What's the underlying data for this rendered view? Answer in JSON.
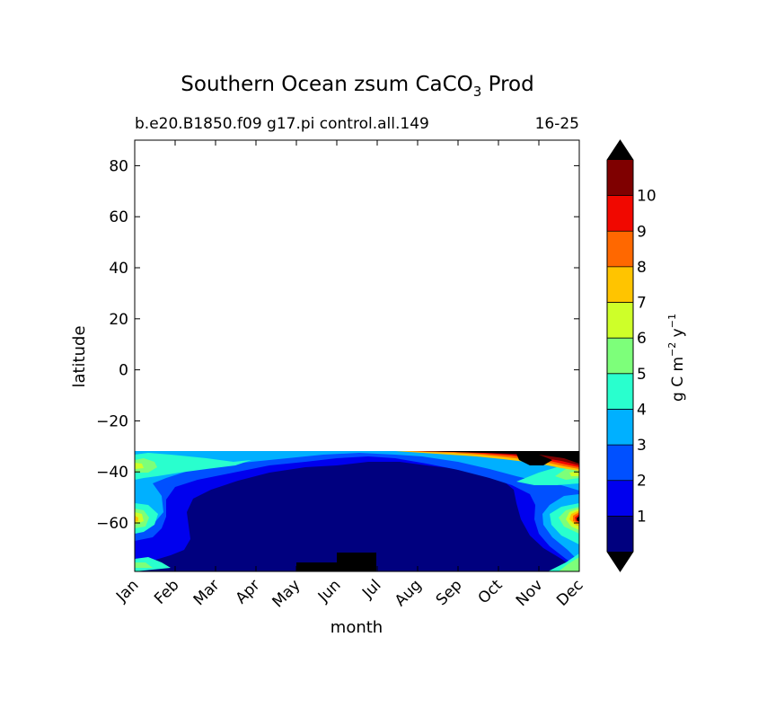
{
  "chart_data": {
    "type": "heatmap",
    "title": "Southern Ocean zsum CaCO",
    "title_sub": "3",
    "title_tail": " Prod",
    "subtitle_left": "b.e20.B1850.f09 g17.pi control.all.149",
    "subtitle_right": "16-25",
    "xlabel": "month",
    "ylabel": "latitude",
    "x_ticks": [
      "Jan",
      "Feb",
      "Mar",
      "Apr",
      "May",
      "Jun",
      "Jul",
      "Aug",
      "Sep",
      "Oct",
      "Nov",
      "Dec"
    ],
    "xlim": [
      0,
      11
    ],
    "ylim": [
      -79,
      90
    ],
    "y_ticks": [
      80,
      60,
      40,
      20,
      0,
      -20,
      -40,
      -60
    ],
    "y_tick_labels": [
      "80",
      "60",
      "40",
      "20",
      "0",
      "−20",
      "−40",
      "−60"
    ],
    "data_lat_range": [
      -79,
      -32
    ],
    "colorbar": {
      "label": "g C m",
      "label_sup1": "−2",
      "label_mid": " y",
      "label_sup2": "−1",
      "levels": [
        0,
        1,
        2,
        3,
        4,
        5,
        6,
        7,
        8,
        9,
        10,
        11
      ],
      "tick_labels": [
        "1",
        "2",
        "3",
        "4",
        "5",
        "6",
        "7",
        "8",
        "9",
        "10"
      ],
      "colors": [
        "#00007f",
        "#0000ee",
        "#0050ff",
        "#00b0ff",
        "#29ffce",
        "#7dff7a",
        "#ceff29",
        "#ffc400",
        "#ff6800",
        "#f10800",
        "#7f0000"
      ],
      "extend_under_color": "#000000",
      "extend_over_color": "#000000"
    },
    "features": [
      {
        "name": "mid-winter minimum (<1) near Antarctic margin",
        "month_range": [
          4,
          6
        ],
        "lat_range": [
          -79,
          -72
        ]
      },
      {
        "name": "summer maximum (>10) subtropical front",
        "month_range": [
          7,
          11
        ],
        "lat_range": [
          -38,
          -32
        ]
      },
      {
        "name": "summer maximum (>10) near 58S",
        "month_range": [
          10.5,
          11
        ],
        "lat_range": [
          -62,
          -55
        ]
      }
    ]
  }
}
